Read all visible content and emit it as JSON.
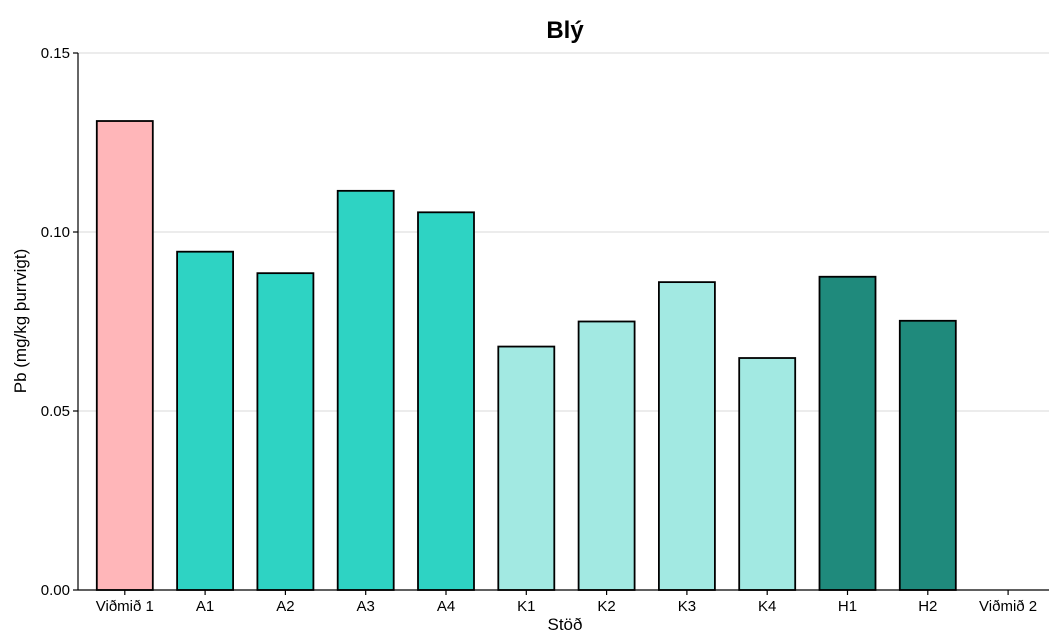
{
  "chart_data": {
    "type": "bar",
    "title": "Blý",
    "xlabel": "Stöð",
    "ylabel": "Pb (mg/kg þurrvigt)",
    "ylim": [
      0,
      0.15
    ],
    "yticks": [
      "0.00",
      "0.05",
      "0.10",
      "0.15"
    ],
    "grid": "horizontal",
    "categories": [
      "Viðmið 1",
      "A1",
      "A2",
      "A3",
      "A4",
      "K1",
      "K2",
      "K3",
      "K4",
      "H1",
      "H2",
      "Viðmið 2"
    ],
    "values": [
      0.131,
      0.0945,
      0.0885,
      0.1115,
      0.1055,
      0.068,
      0.075,
      0.086,
      0.0648,
      0.0875,
      0.0752,
      null
    ],
    "colors": [
      "#ffb6b9",
      "#2ed3c3",
      "#2ed3c3",
      "#2ed3c3",
      "#2ed3c3",
      "#a2e9e2",
      "#a2e9e2",
      "#a2e9e2",
      "#a2e9e2",
      "#1f8a7c",
      "#1f8a7c",
      "#ffb6b9"
    ]
  }
}
